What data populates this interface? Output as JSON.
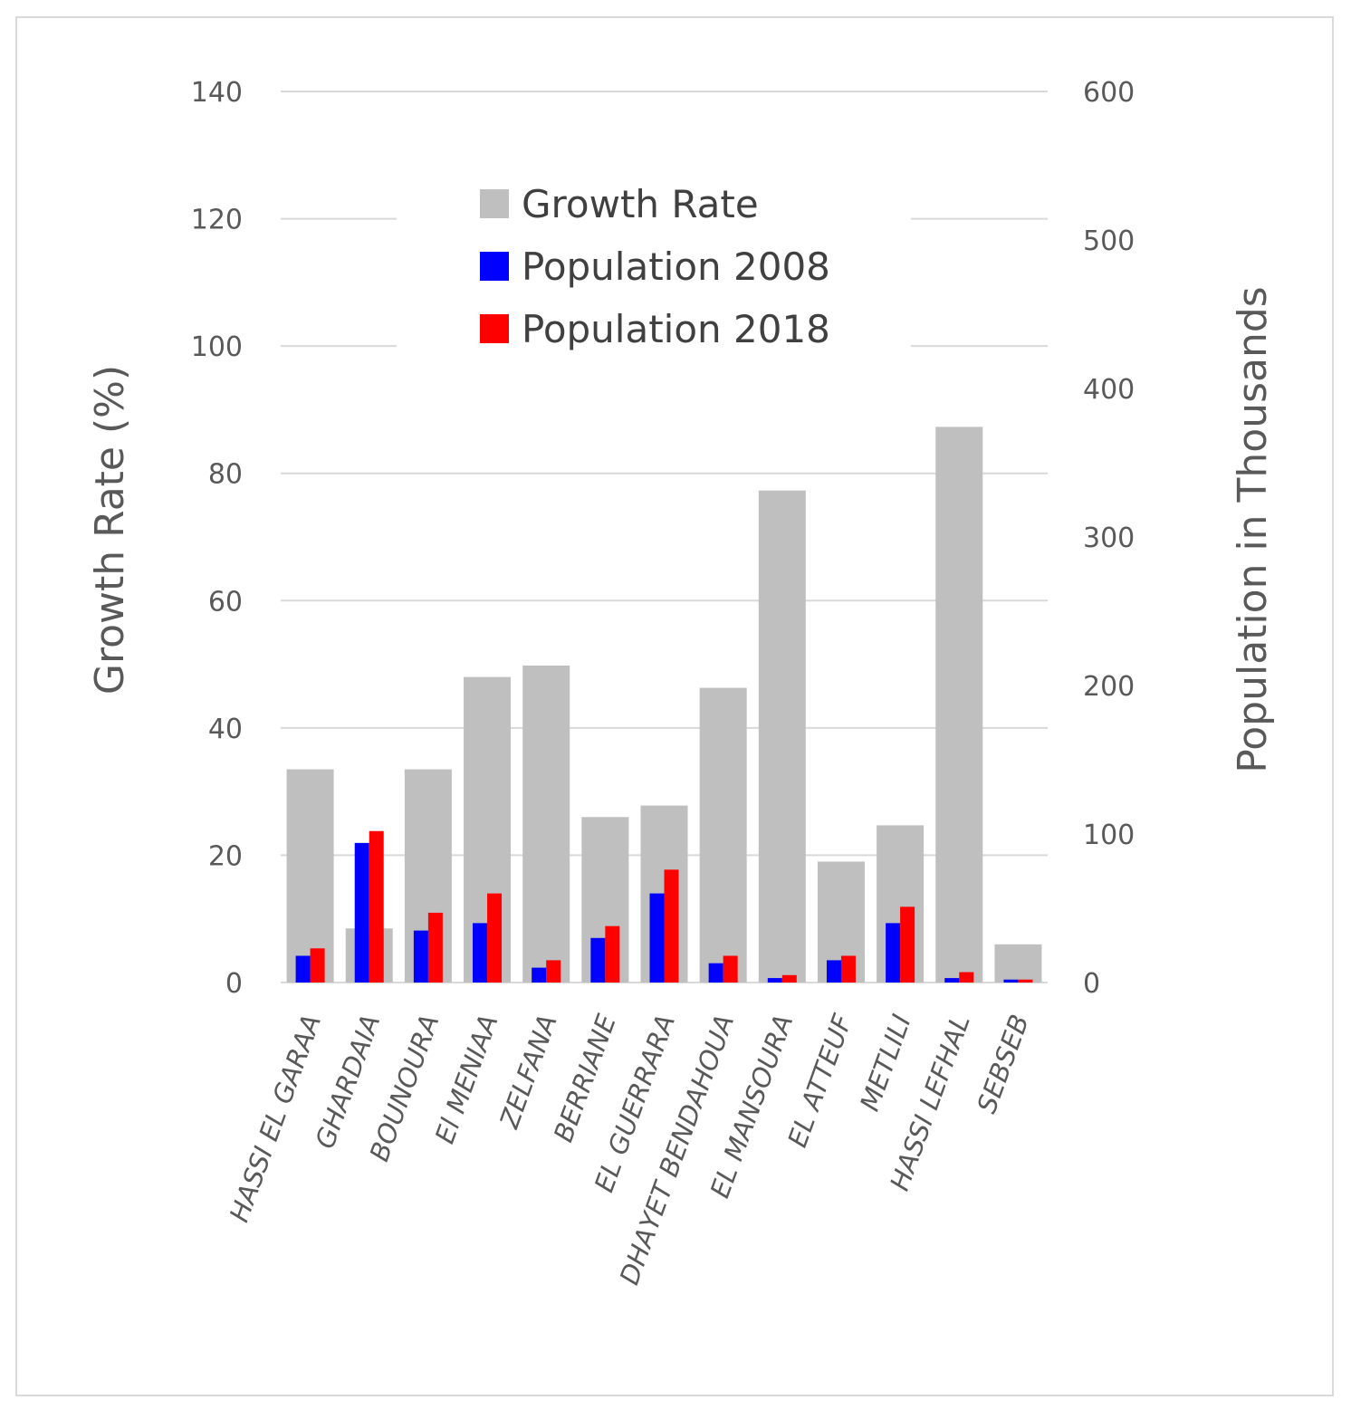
{
  "chart_data": {
    "type": "bar",
    "title": "",
    "categories": [
      "HASSI EL GARAA",
      "GHARDAIA",
      "BOUNOURA",
      "El MENIAA",
      "ZELFANA",
      "BERRIANE",
      "EL GUERRARA",
      "DHAYET BENDAHOUA",
      "EL MANSOURA",
      "EL ATTEUF",
      "METLILI",
      "HASSI LEFHAL",
      "SEBSEB"
    ],
    "series": [
      {
        "name": "Growth Rate",
        "axis": "left",
        "color": "#bfbfbf",
        "values": [
          33.5,
          8.5,
          33.5,
          48,
          49.8,
          26,
          27.8,
          46.3,
          77.3,
          19,
          24.7,
          87.3,
          6
        ]
      },
      {
        "name": "Population 2008",
        "axis": "right",
        "color": "#0000ff",
        "values": [
          18,
          94,
          35,
          40,
          10,
          30,
          60,
          13,
          3,
          15,
          40,
          3,
          2
        ]
      },
      {
        "name": "Population 2018",
        "axis": "right",
        "color": "#ff0000",
        "values": [
          23,
          102,
          47,
          60,
          15,
          38,
          76,
          18,
          5,
          18,
          51,
          7,
          2
        ]
      }
    ],
    "ylabel": "Growth Rate (%)",
    "y2label": "Population in Thousands",
    "ylim": [
      0,
      140
    ],
    "y2lim": [
      0,
      600
    ],
    "yticks": [
      "0",
      "20",
      "40",
      "60",
      "80",
      "100",
      "120",
      "140"
    ],
    "y2ticks": [
      "0",
      "100",
      "200",
      "300",
      "400",
      "500",
      "600"
    ],
    "legend_position": "top-center",
    "grid": true
  }
}
